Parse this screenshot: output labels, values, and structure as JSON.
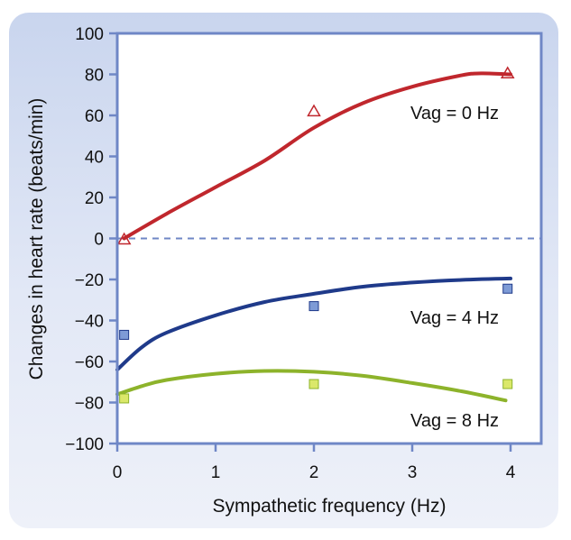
{
  "chart_data": {
    "type": "scatter",
    "xlabel": "Sympathetic frequency (Hz)",
    "ylabel": "Changes in heart rate (beats/min)",
    "xlim": [
      0,
      4.35
    ],
    "ylim": [
      -100,
      100
    ],
    "xticks": [
      0,
      1,
      2,
      3,
      4
    ],
    "yticks": [
      100,
      80,
      60,
      40,
      20,
      0,
      -20,
      -40,
      -60,
      -80,
      -100
    ],
    "ytick_labels": [
      "100",
      "80",
      "60",
      "40",
      "20",
      "0",
      "−20",
      "−40",
      "−60",
      "−80",
      "−100"
    ],
    "zero_reference_line": "dashed",
    "grid": false,
    "series": [
      {
        "name": "Vag = 0 Hz",
        "marker": "triangle",
        "color": "#c0272d",
        "fill": "none",
        "points": [
          [
            0.07,
            -0.5
          ],
          [
            2.0,
            62
          ],
          [
            3.97,
            80.5
          ]
        ],
        "fit": [
          [
            0.07,
            0
          ],
          [
            0.5,
            12
          ],
          [
            1,
            25
          ],
          [
            1.5,
            38
          ],
          [
            2,
            54
          ],
          [
            2.5,
            66
          ],
          [
            3,
            74
          ],
          [
            3.5,
            79.5
          ],
          [
            3.7,
            80.5
          ],
          [
            4,
            80
          ]
        ]
      },
      {
        "name": "Vag = 4 Hz",
        "marker": "square",
        "color": "#1f3a8a",
        "fill": "#7e9bd6",
        "points": [
          [
            0.07,
            -47
          ],
          [
            2.0,
            -33
          ],
          [
            3.97,
            -24.5
          ]
        ],
        "fit": [
          [
            0,
            -64
          ],
          [
            0.25,
            -53
          ],
          [
            0.5,
            -46
          ],
          [
            1,
            -37.5
          ],
          [
            1.5,
            -31
          ],
          [
            2,
            -27
          ],
          [
            2.5,
            -23.5
          ],
          [
            3,
            -21.5
          ],
          [
            3.5,
            -20.2
          ],
          [
            4,
            -19.5
          ]
        ]
      },
      {
        "name": "Vag = 8 Hz",
        "marker": "square",
        "color": "#8db32b",
        "fill": "#dbe86a",
        "points": [
          [
            0.07,
            -78
          ],
          [
            2.0,
            -71
          ],
          [
            3.97,
            -71
          ]
        ],
        "fit": [
          [
            0,
            -76
          ],
          [
            0.25,
            -72
          ],
          [
            0.5,
            -69
          ],
          [
            1,
            -66
          ],
          [
            1.5,
            -64.6
          ],
          [
            2,
            -65
          ],
          [
            2.5,
            -67
          ],
          [
            3,
            -70.5
          ],
          [
            3.5,
            -74.5
          ],
          [
            3.95,
            -79
          ]
        ]
      }
    ]
  }
}
